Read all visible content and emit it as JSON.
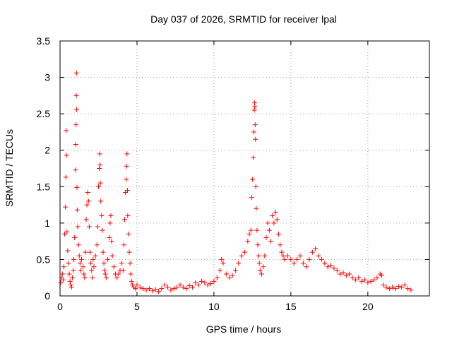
{
  "chart_data": {
    "type": "scatter",
    "title": "Day 037 of 2026, SRMTID for receiver lpal",
    "xlabel": "GPS time / hours",
    "ylabel": "SRMTID / TECUs",
    "xlim": [
      0,
      24
    ],
    "ylim": [
      0,
      3.5
    ],
    "xticks": [
      0,
      5,
      10,
      15,
      20
    ],
    "yticks": [
      0,
      0.5,
      1,
      1.5,
      2,
      2.5,
      3,
      3.5
    ],
    "xtick_labels": [
      "0",
      "5",
      "10",
      "15",
      "20"
    ],
    "ytick_labels": [
      "0",
      "0.5",
      "1",
      "1.5",
      "2",
      "2.5",
      "3",
      "3.5"
    ],
    "grid": true,
    "marker": "+",
    "marker_color": "#ff0000",
    "series": [
      {
        "name": "SRMTID",
        "points": [
          [
            0.05,
            0.18
          ],
          [
            0.1,
            0.25
          ],
          [
            0.15,
            0.3
          ],
          [
            0.2,
            0.22
          ],
          [
            0.25,
            0.4
          ],
          [
            0.3,
            0.85
          ],
          [
            0.35,
            1.22
          ],
          [
            0.38,
            1.63
          ],
          [
            0.4,
            2.27
          ],
          [
            0.42,
            1.93
          ],
          [
            0.45,
            0.88
          ],
          [
            0.5,
            0.62
          ],
          [
            0.55,
            0.45
          ],
          [
            0.6,
            0.3
          ],
          [
            0.65,
            0.2
          ],
          [
            0.7,
            0.15
          ],
          [
            0.75,
            0.12
          ],
          [
            0.8,
            0.25
          ],
          [
            0.85,
            0.35
          ],
          [
            0.9,
            0.5
          ],
          [
            0.95,
            0.8
          ],
          [
            1.0,
            1.73
          ],
          [
            1.02,
            2.08
          ],
          [
            1.04,
            2.35
          ],
          [
            1.06,
            2.75
          ],
          [
            1.07,
            3.06
          ],
          [
            1.08,
            2.56
          ],
          [
            1.1,
            1.49
          ],
          [
            1.12,
            1.18
          ],
          [
            1.15,
            0.95
          ],
          [
            1.2,
            0.7
          ],
          [
            1.25,
            0.55
          ],
          [
            1.3,
            0.45
          ],
          [
            1.35,
            0.35
          ],
          [
            1.4,
            0.5
          ],
          [
            1.5,
            0.4
          ],
          [
            1.55,
            0.3
          ],
          [
            1.6,
            0.25
          ],
          [
            1.65,
            0.6
          ],
          [
            1.7,
            1.05
          ],
          [
            1.75,
            1.25
          ],
          [
            1.8,
            1.42
          ],
          [
            1.85,
            1.3
          ],
          [
            1.9,
            0.95
          ],
          [
            1.95,
            0.6
          ],
          [
            2.0,
            0.45
          ],
          [
            2.05,
            0.35
          ],
          [
            2.1,
            0.25
          ],
          [
            2.15,
            0.5
          ],
          [
            2.2,
            0.4
          ],
          [
            2.3,
            0.55
          ],
          [
            2.4,
            0.7
          ],
          [
            2.45,
            0.95
          ],
          [
            2.5,
            1.5
          ],
          [
            2.55,
            1.75
          ],
          [
            2.58,
            1.95
          ],
          [
            2.6,
            1.8
          ],
          [
            2.62,
            1.55
          ],
          [
            2.65,
            1.3
          ],
          [
            2.7,
            1.1
          ],
          [
            2.75,
            0.9
          ],
          [
            2.8,
            0.6
          ],
          [
            2.85,
            0.45
          ],
          [
            2.9,
            0.35
          ],
          [
            2.95,
            0.3
          ],
          [
            3.0,
            0.25
          ],
          [
            3.1,
            0.5
          ],
          [
            3.2,
            0.8
          ],
          [
            3.25,
            1.0
          ],
          [
            3.3,
            1.1
          ],
          [
            3.35,
            0.75
          ],
          [
            3.4,
            0.55
          ],
          [
            3.5,
            0.4
          ],
          [
            3.6,
            0.3
          ],
          [
            3.7,
            0.25
          ],
          [
            3.8,
            0.3
          ],
          [
            3.9,
            0.35
          ],
          [
            4.0,
            0.45
          ],
          [
            4.1,
            0.35
          ],
          [
            4.15,
            0.7
          ],
          [
            4.2,
            1.05
          ],
          [
            4.25,
            1.42
          ],
          [
            4.3,
            1.6
          ],
          [
            4.32,
            1.78
          ],
          [
            4.35,
            1.95
          ],
          [
            4.38,
            1.45
          ],
          [
            4.4,
            1.1
          ],
          [
            4.45,
            0.85
          ],
          [
            4.5,
            0.6
          ],
          [
            4.55,
            0.45
          ],
          [
            4.6,
            0.3
          ],
          [
            4.65,
            0.2
          ],
          [
            4.7,
            0.15
          ],
          [
            4.8,
            0.12
          ],
          [
            4.9,
            0.1
          ],
          [
            5.0,
            0.15
          ],
          [
            5.2,
            0.12
          ],
          [
            5.4,
            0.1
          ],
          [
            5.6,
            0.08
          ],
          [
            5.8,
            0.1
          ],
          [
            6.0,
            0.07
          ],
          [
            6.2,
            0.09
          ],
          [
            6.4,
            0.06
          ],
          [
            6.6,
            0.1
          ],
          [
            6.8,
            0.15
          ],
          [
            7.0,
            0.12
          ],
          [
            7.2,
            0.08
          ],
          [
            7.4,
            0.1
          ],
          [
            7.6,
            0.12
          ],
          [
            7.8,
            0.15
          ],
          [
            8.0,
            0.12
          ],
          [
            8.2,
            0.1
          ],
          [
            8.4,
            0.14
          ],
          [
            8.6,
            0.12
          ],
          [
            8.8,
            0.18
          ],
          [
            9.0,
            0.15
          ],
          [
            9.2,
            0.2
          ],
          [
            9.4,
            0.18
          ],
          [
            9.6,
            0.15
          ],
          [
            9.8,
            0.17
          ],
          [
            10.0,
            0.2
          ],
          [
            10.2,
            0.25
          ],
          [
            10.4,
            0.35
          ],
          [
            10.5,
            0.5
          ],
          [
            10.6,
            0.45
          ],
          [
            10.8,
            0.3
          ],
          [
            11.0,
            0.25
          ],
          [
            11.2,
            0.28
          ],
          [
            11.4,
            0.35
          ],
          [
            11.6,
            0.45
          ],
          [
            11.8,
            0.55
          ],
          [
            12.0,
            0.6
          ],
          [
            12.2,
            0.75
          ],
          [
            12.3,
            0.85
          ],
          [
            12.4,
            0.9
          ],
          [
            12.45,
            1.35
          ],
          [
            12.5,
            1.6
          ],
          [
            12.55,
            1.9
          ],
          [
            12.6,
            2.25
          ],
          [
            12.62,
            2.55
          ],
          [
            12.64,
            2.65
          ],
          [
            12.66,
            2.6
          ],
          [
            12.68,
            2.35
          ],
          [
            12.7,
            2.15
          ],
          [
            12.72,
            1.5
          ],
          [
            12.75,
            1.2
          ],
          [
            12.8,
            0.9
          ],
          [
            12.85,
            0.7
          ],
          [
            12.9,
            0.55
          ],
          [
            12.95,
            0.45
          ],
          [
            13.0,
            0.35
          ],
          [
            13.1,
            0.3
          ],
          [
            13.2,
            0.4
          ],
          [
            13.3,
            0.55
          ],
          [
            13.4,
            0.8
          ],
          [
            13.5,
            1.0
          ],
          [
            13.6,
            0.9
          ],
          [
            13.7,
            0.75
          ],
          [
            13.8,
            1.1
          ],
          [
            13.9,
            1.0
          ],
          [
            14.0,
            1.15
          ],
          [
            14.1,
            1.05
          ],
          [
            14.2,
            0.85
          ],
          [
            14.3,
            0.7
          ],
          [
            14.4,
            0.6
          ],
          [
            14.5,
            0.55
          ],
          [
            14.6,
            0.5
          ],
          [
            14.8,
            0.55
          ],
          [
            15.0,
            0.5
          ],
          [
            15.2,
            0.45
          ],
          [
            15.4,
            0.5
          ],
          [
            15.6,
            0.55
          ],
          [
            15.8,
            0.45
          ],
          [
            16.0,
            0.4
          ],
          [
            16.2,
            0.5
          ],
          [
            16.4,
            0.6
          ],
          [
            16.6,
            0.65
          ],
          [
            16.8,
            0.55
          ],
          [
            17.0,
            0.5
          ],
          [
            17.2,
            0.45
          ],
          [
            17.4,
            0.4
          ],
          [
            17.6,
            0.42
          ],
          [
            17.8,
            0.38
          ],
          [
            18.0,
            0.35
          ],
          [
            18.2,
            0.3
          ],
          [
            18.4,
            0.32
          ],
          [
            18.6,
            0.28
          ],
          [
            18.8,
            0.3
          ],
          [
            19.0,
            0.25
          ],
          [
            19.2,
            0.22
          ],
          [
            19.4,
            0.25
          ],
          [
            19.6,
            0.2
          ],
          [
            19.8,
            0.22
          ],
          [
            20.0,
            0.18
          ],
          [
            20.2,
            0.2
          ],
          [
            20.4,
            0.22
          ],
          [
            20.6,
            0.25
          ],
          [
            20.8,
            0.3
          ],
          [
            20.9,
            0.28
          ],
          [
            21.0,
            0.15
          ],
          [
            21.2,
            0.12
          ],
          [
            21.4,
            0.1
          ],
          [
            21.6,
            0.12
          ],
          [
            21.8,
            0.1
          ],
          [
            22.0,
            0.13
          ],
          [
            22.2,
            0.12
          ],
          [
            22.4,
            0.15
          ],
          [
            22.6,
            0.1
          ],
          [
            22.8,
            0.08
          ]
        ]
      }
    ]
  }
}
